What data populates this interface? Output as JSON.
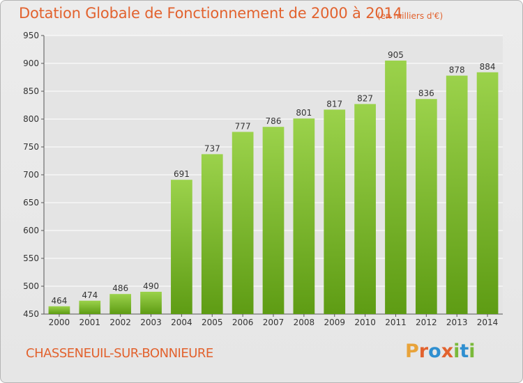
{
  "header": {
    "title": "Dotation Globale de Fonctionnement de 2000 à 2014",
    "subtitle": "(en milliers d'€)"
  },
  "footer": {
    "commune": "CHASSENEUIL-SUR-BONNIEURE",
    "logo_letters": [
      "P",
      "r",
      "o",
      "x",
      "i",
      "t",
      "i"
    ],
    "logo_colors": [
      "#e8a33a",
      "#e2622e",
      "#2f8fd0",
      "#e2622e",
      "#7ab93a",
      "#2f8fd0",
      "#7ab93a"
    ]
  },
  "colors": {
    "bar_light": "#9bd24b",
    "bar_dark": "#5e9c14",
    "axis_text": "#333333",
    "grid": "#ffffff",
    "accent": "#e2622e"
  },
  "chart_data": {
    "type": "bar",
    "categories": [
      "2000",
      "2001",
      "2002",
      "2003",
      "2004",
      "2005",
      "2006",
      "2007",
      "2008",
      "2009",
      "2010",
      "2011",
      "2012",
      "2013",
      "2014"
    ],
    "values": [
      464,
      474,
      486,
      490,
      691,
      737,
      777,
      786,
      801,
      817,
      827,
      905,
      836,
      878,
      884
    ],
    "ylim": [
      450,
      950
    ],
    "yticks": [
      450,
      500,
      550,
      600,
      650,
      700,
      750,
      800,
      850,
      900,
      950
    ],
    "grid": true,
    "data_labels": true
  }
}
